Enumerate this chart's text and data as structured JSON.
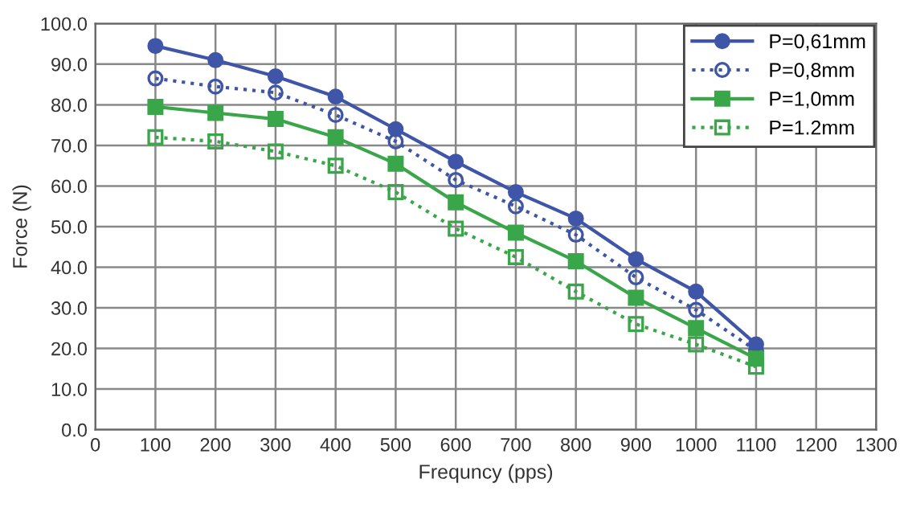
{
  "chart_data": {
    "type": "line",
    "xlabel": "Frequncy (pps)",
    "ylabel": "Force (N)",
    "x": [
      100,
      200,
      300,
      400,
      500,
      600,
      700,
      800,
      900,
      1000,
      1100
    ],
    "series": [
      {
        "name": "P=0,61mm",
        "color": "#3f56a8",
        "marker": "circle",
        "line_style": "solid",
        "values": [
          94.5,
          91,
          87,
          82,
          74,
          66,
          58.5,
          52,
          42,
          34,
          21
        ]
      },
      {
        "name": "P=0,8mm",
        "color": "#3f56a8",
        "marker": "circle",
        "line_style": "dotted",
        "values": [
          86.5,
          84.5,
          83,
          77.5,
          71,
          61.5,
          55,
          48,
          37.5,
          29.5,
          19.5
        ]
      },
      {
        "name": "P=1,0mm",
        "color": "#3aa64a",
        "marker": "square",
        "line_style": "solid",
        "values": [
          79.5,
          78,
          76.5,
          72,
          65.5,
          56,
          48.5,
          41.5,
          32.5,
          25,
          17.5
        ]
      },
      {
        "name": "P=1.2mm",
        "color": "#3aa64a",
        "marker": "square",
        "line_style": "dotted",
        "values": [
          72,
          71,
          68.5,
          65,
          58.5,
          49.5,
          42.5,
          34,
          26,
          21,
          15.5
        ]
      }
    ],
    "xlim": [
      0,
      1300
    ],
    "xticks": [
      0,
      100,
      200,
      300,
      400,
      500,
      600,
      700,
      800,
      900,
      1000,
      1100,
      1200,
      1300
    ],
    "ylim": [
      0,
      100
    ],
    "yticks": [
      {
        "value": 0,
        "label": "0.0"
      },
      {
        "value": 10,
        "label": "10.0"
      },
      {
        "value": 20,
        "label": "20.0"
      },
      {
        "value": 30,
        "label": "30.0"
      },
      {
        "value": 40,
        "label": "40.0"
      },
      {
        "value": 50,
        "label": "50.0"
      },
      {
        "value": 60,
        "label": "60.0"
      },
      {
        "value": 70,
        "label": "70.0"
      },
      {
        "value": 80,
        "label": "80.0"
      },
      {
        "value": 90,
        "label": "90.0"
      },
      {
        "value": 100,
        "label": "100.0"
      }
    ],
    "grid": true,
    "legend": "top right"
  }
}
